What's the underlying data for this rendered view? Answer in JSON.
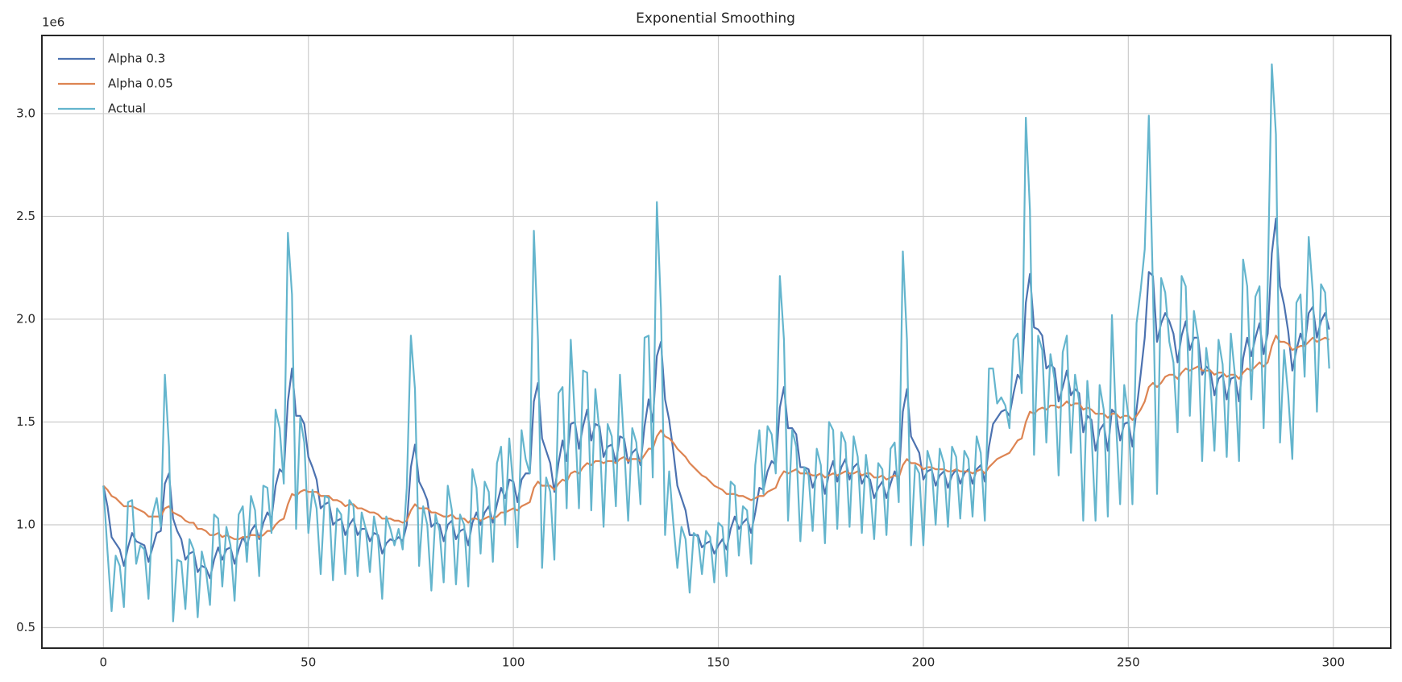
{
  "chart_data": {
    "type": "line",
    "title": "Exponential Smoothing",
    "y_offset_label": "1e6",
    "grid": true,
    "legend": "upper left",
    "xlim": [
      -15,
      314
    ],
    "xticks": [
      0,
      50,
      100,
      150,
      200,
      250,
      300
    ],
    "ylim": [
      0.4,
      3.38
    ],
    "yticks": [
      0.5,
      {
        "value": 1,
        "label": "1.0"
      },
      1.5,
      {
        "value": 2,
        "label": "2.0"
      },
      2.5,
      {
        "value": 3,
        "label": "3.0"
      }
    ],
    "x": [
      0,
      1,
      2,
      3,
      4,
      5,
      6,
      7,
      8,
      9,
      10,
      11,
      12,
      13,
      14,
      15,
      16,
      17,
      18,
      19,
      20,
      21,
      22,
      23,
      24,
      25,
      26,
      27,
      28,
      29,
      30,
      31,
      32,
      33,
      34,
      35,
      36,
      37,
      38,
      39,
      40,
      41,
      42,
      43,
      44,
      45,
      46,
      47,
      48,
      49,
      50,
      51,
      52,
      53,
      54,
      55,
      56,
      57,
      58,
      59,
      60,
      61,
      62,
      63,
      64,
      65,
      66,
      67,
      68,
      69,
      70,
      71,
      72,
      73,
      74,
      75,
      76,
      77,
      78,
      79,
      80,
      81,
      82,
      83,
      84,
      85,
      86,
      87,
      88,
      89,
      90,
      91,
      92,
      93,
      94,
      95,
      96,
      97,
      98,
      99,
      100,
      101,
      102,
      103,
      104,
      105,
      106,
      107,
      108,
      109,
      110,
      111,
      112,
      113,
      114,
      115,
      116,
      117,
      118,
      119,
      120,
      121,
      122,
      123,
      124,
      125,
      126,
      127,
      128,
      129,
      130,
      131,
      132,
      133,
      134,
      135,
      136,
      137,
      138,
      139,
      140,
      141,
      142,
      143,
      144,
      145,
      146,
      147,
      148,
      149,
      150,
      151,
      152,
      153,
      154,
      155,
      156,
      157,
      158,
      159,
      160,
      161,
      162,
      163,
      164,
      165,
      166,
      167,
      168,
      169,
      170,
      171,
      172,
      173,
      174,
      175,
      176,
      177,
      178,
      179,
      180,
      181,
      182,
      183,
      184,
      185,
      186,
      187,
      188,
      189,
      190,
      191,
      192,
      193,
      194,
      195,
      196,
      197,
      198,
      199,
      200,
      201,
      202,
      203,
      204,
      205,
      206,
      207,
      208,
      209,
      210,
      211,
      212,
      213,
      214,
      215,
      216,
      217,
      218,
      219,
      220,
      221,
      222,
      223,
      224,
      225,
      226,
      227,
      228,
      229,
      230,
      231,
      232,
      233,
      234,
      235,
      236,
      237,
      238,
      239,
      240,
      241,
      242,
      243,
      244,
      245,
      246,
      247,
      248,
      249,
      250,
      251,
      252,
      253,
      254,
      255,
      256,
      257,
      258,
      259,
      260,
      261,
      262,
      263,
      264,
      265,
      266,
      267,
      268,
      269,
      270,
      271,
      272,
      273,
      274,
      275,
      276,
      277,
      278,
      279,
      280,
      281,
      282,
      283,
      284,
      285,
      286,
      287,
      288,
      289,
      290,
      291,
      292,
      293,
      294,
      295,
      296,
      297,
      298,
      299
    ],
    "series": [
      {
        "name": "Alpha 0.3",
        "color": "#4c72b0",
        "values": [
          1.19,
          1.09,
          0.94,
          0.91,
          0.88,
          0.8,
          0.89,
          0.96,
          0.92,
          0.91,
          0.9,
          0.82,
          0.89,
          0.96,
          0.97,
          1.2,
          1.25,
          1.03,
          0.97,
          0.93,
          0.83,
          0.86,
          0.87,
          0.77,
          0.8,
          0.79,
          0.74,
          0.83,
          0.89,
          0.83,
          0.88,
          0.89,
          0.81,
          0.88,
          0.94,
          0.9,
          0.97,
          1.0,
          0.93,
          1.01,
          1.06,
          1.03,
          1.19,
          1.27,
          1.25,
          1.6,
          1.76,
          1.53,
          1.53,
          1.49,
          1.33,
          1.28,
          1.22,
          1.08,
          1.1,
          1.11,
          1.0,
          1.02,
          1.03,
          0.95,
          1.0,
          1.03,
          0.95,
          0.98,
          0.98,
          0.92,
          0.96,
          0.95,
          0.86,
          0.91,
          0.93,
          0.92,
          0.94,
          0.92,
          1.0,
          1.28,
          1.39,
          1.21,
          1.17,
          1.12,
          0.99,
          1.01,
          1.0,
          0.92,
          1.0,
          1.02,
          0.93,
          0.97,
          0.98,
          0.9,
          1.01,
          1.06,
          1.0,
          1.06,
          1.09,
          1.01,
          1.1,
          1.18,
          1.13,
          1.22,
          1.21,
          1.11,
          1.22,
          1.25,
          1.25,
          1.6,
          1.69,
          1.42,
          1.36,
          1.3,
          1.16,
          1.3,
          1.41,
          1.31,
          1.49,
          1.5,
          1.37,
          1.48,
          1.56,
          1.41,
          1.49,
          1.48,
          1.33,
          1.38,
          1.39,
          1.3,
          1.43,
          1.42,
          1.3,
          1.35,
          1.37,
          1.29,
          1.48,
          1.61,
          1.5,
          1.82,
          1.89,
          1.61,
          1.51,
          1.36,
          1.19,
          1.13,
          1.07,
          0.95,
          0.95,
          0.95,
          0.89,
          0.91,
          0.92,
          0.86,
          0.9,
          0.93,
          0.88,
          0.98,
          1.04,
          0.98,
          1.01,
          1.03,
          0.96,
          1.06,
          1.18,
          1.17,
          1.26,
          1.31,
          1.29,
          1.57,
          1.67,
          1.47,
          1.47,
          1.44,
          1.28,
          1.28,
          1.27,
          1.18,
          1.24,
          1.25,
          1.15,
          1.25,
          1.31,
          1.21,
          1.28,
          1.32,
          1.22,
          1.28,
          1.3,
          1.2,
          1.24,
          1.22,
          1.13,
          1.18,
          1.21,
          1.13,
          1.2,
          1.26,
          1.22,
          1.55,
          1.66,
          1.43,
          1.39,
          1.35,
          1.22,
          1.26,
          1.27,
          1.19,
          1.24,
          1.26,
          1.18,
          1.24,
          1.27,
          1.2,
          1.25,
          1.27,
          1.2,
          1.27,
          1.29,
          1.21,
          1.38,
          1.49,
          1.52,
          1.55,
          1.56,
          1.53,
          1.64,
          1.73,
          1.7,
          2.08,
          2.22,
          1.96,
          1.95,
          1.92,
          1.76,
          1.78,
          1.76,
          1.6,
          1.67,
          1.75,
          1.63,
          1.66,
          1.64,
          1.45,
          1.53,
          1.51,
          1.36,
          1.46,
          1.49,
          1.36,
          1.56,
          1.54,
          1.41,
          1.49,
          1.5,
          1.38,
          1.56,
          1.73,
          1.91,
          2.23,
          2.21,
          1.89,
          1.98,
          2.03,
          1.99,
          1.93,
          1.79,
          1.92,
          1.99,
          1.85,
          1.91,
          1.91,
          1.73,
          1.77,
          1.75,
          1.63,
          1.71,
          1.73,
          1.61,
          1.71,
          1.72,
          1.6,
          1.81,
          1.91,
          1.82,
          1.91,
          1.98,
          1.83,
          1.93,
          2.32,
          2.49,
          2.16,
          2.07,
          1.94,
          1.75,
          1.85,
          1.93,
          1.87,
          2.03,
          2.06,
          1.91,
          1.99,
          2.03,
          1.95
        ]
      },
      {
        "name": "Alpha 0.05",
        "color": "#dd8452",
        "values": [
          1.19,
          1.17,
          1.14,
          1.13,
          1.11,
          1.09,
          1.09,
          1.09,
          1.08,
          1.07,
          1.06,
          1.04,
          1.04,
          1.04,
          1.04,
          1.08,
          1.09,
          1.06,
          1.05,
          1.04,
          1.02,
          1.01,
          1.01,
          0.98,
          0.98,
          0.97,
          0.95,
          0.95,
          0.96,
          0.94,
          0.95,
          0.94,
          0.93,
          0.93,
          0.94,
          0.94,
          0.95,
          0.95,
          0.94,
          0.95,
          0.97,
          0.97,
          1.0,
          1.02,
          1.03,
          1.1,
          1.15,
          1.14,
          1.16,
          1.17,
          1.16,
          1.16,
          1.16,
          1.14,
          1.14,
          1.14,
          1.12,
          1.12,
          1.11,
          1.09,
          1.1,
          1.1,
          1.08,
          1.08,
          1.07,
          1.06,
          1.06,
          1.05,
          1.03,
          1.03,
          1.03,
          1.02,
          1.02,
          1.01,
          1.02,
          1.07,
          1.1,
          1.08,
          1.08,
          1.08,
          1.06,
          1.06,
          1.05,
          1.04,
          1.04,
          1.05,
          1.03,
          1.03,
          1.03,
          1.01,
          1.03,
          1.03,
          1.02,
          1.03,
          1.04,
          1.03,
          1.04,
          1.06,
          1.06,
          1.07,
          1.08,
          1.07,
          1.09,
          1.1,
          1.11,
          1.18,
          1.21,
          1.19,
          1.19,
          1.19,
          1.17,
          1.2,
          1.22,
          1.21,
          1.25,
          1.26,
          1.25,
          1.28,
          1.3,
          1.29,
          1.31,
          1.31,
          1.3,
          1.31,
          1.31,
          1.3,
          1.32,
          1.33,
          1.31,
          1.32,
          1.32,
          1.31,
          1.34,
          1.37,
          1.37,
          1.43,
          1.46,
          1.43,
          1.42,
          1.4,
          1.37,
          1.35,
          1.33,
          1.3,
          1.28,
          1.26,
          1.24,
          1.23,
          1.21,
          1.19,
          1.18,
          1.17,
          1.15,
          1.15,
          1.15,
          1.14,
          1.14,
          1.13,
          1.12,
          1.13,
          1.14,
          1.14,
          1.16,
          1.17,
          1.18,
          1.23,
          1.26,
          1.25,
          1.26,
          1.27,
          1.25,
          1.25,
          1.25,
          1.24,
          1.24,
          1.25,
          1.23,
          1.24,
          1.25,
          1.24,
          1.25,
          1.26,
          1.25,
          1.25,
          1.26,
          1.24,
          1.25,
          1.25,
          1.23,
          1.23,
          1.24,
          1.22,
          1.23,
          1.24,
          1.23,
          1.29,
          1.32,
          1.3,
          1.3,
          1.29,
          1.27,
          1.28,
          1.28,
          1.27,
          1.27,
          1.27,
          1.26,
          1.26,
          1.27,
          1.26,
          1.26,
          1.26,
          1.25,
          1.26,
          1.27,
          1.25,
          1.28,
          1.3,
          1.32,
          1.33,
          1.34,
          1.35,
          1.38,
          1.41,
          1.42,
          1.5,
          1.55,
          1.54,
          1.56,
          1.57,
          1.56,
          1.58,
          1.58,
          1.57,
          1.58,
          1.6,
          1.58,
          1.59,
          1.59,
          1.56,
          1.57,
          1.56,
          1.54,
          1.54,
          1.54,
          1.52,
          1.54,
          1.54,
          1.52,
          1.53,
          1.53,
          1.51,
          1.53,
          1.56,
          1.6,
          1.67,
          1.69,
          1.67,
          1.69,
          1.72,
          1.73,
          1.73,
          1.71,
          1.74,
          1.76,
          1.75,
          1.76,
          1.77,
          1.75,
          1.75,
          1.75,
          1.73,
          1.74,
          1.74,
          1.72,
          1.73,
          1.73,
          1.71,
          1.74,
          1.76,
          1.75,
          1.77,
          1.79,
          1.77,
          1.79,
          1.87,
          1.92,
          1.89,
          1.89,
          1.88,
          1.85,
          1.86,
          1.87,
          1.87,
          1.89,
          1.91,
          1.89,
          1.9,
          1.91,
          1.9
        ]
      },
      {
        "name": "Actual",
        "color": "#64b5cd",
        "values": [
          1.19,
          0.87,
          0.58,
          0.85,
          0.8,
          0.6,
          1.11,
          1.12,
          0.81,
          0.9,
          0.88,
          0.64,
          1.05,
          1.13,
          0.99,
          1.73,
          1.38,
          0.53,
          0.83,
          0.82,
          0.59,
          0.93,
          0.88,
          0.55,
          0.87,
          0.78,
          0.61,
          1.05,
          1.03,
          0.7,
          0.99,
          0.9,
          0.63,
          1.05,
          1.09,
          0.82,
          1.14,
          1.07,
          0.75,
          1.19,
          1.18,
          0.96,
          1.56,
          1.47,
          1.2,
          2.42,
          2.12,
          0.98,
          1.52,
          1.4,
          0.96,
          1.17,
          1.08,
          0.76,
          1.14,
          1.13,
          0.73,
          1.08,
          1.05,
          0.76,
          1.12,
          1.09,
          0.75,
          1.06,
          0.98,
          0.77,
          1.04,
          0.93,
          0.64,
          1.04,
          0.98,
          0.9,
          0.98,
          0.88,
          1.18,
          1.92,
          1.66,
          0.8,
          1.09,
          1.0,
          0.68,
          1.05,
          0.97,
          0.72,
          1.19,
          1.07,
          0.71,
          1.05,
          1.0,
          0.7,
          1.27,
          1.18,
          0.86,
          1.21,
          1.16,
          0.82,
          1.3,
          1.38,
          1.0,
          1.42,
          1.18,
          0.89,
          1.46,
          1.32,
          1.25,
          2.43,
          1.9,
          0.79,
          1.23,
          1.16,
          0.83,
          1.64,
          1.67,
          1.08,
          1.9,
          1.52,
          1.08,
          1.75,
          1.74,
          1.07,
          1.66,
          1.45,
          0.99,
          1.49,
          1.43,
          1.09,
          1.73,
          1.39,
          1.02,
          1.47,
          1.4,
          1.1,
          1.91,
          1.92,
          1.23,
          2.57,
          2.05,
          0.95,
          1.26,
          1.01,
          0.79,
          0.99,
          0.93,
          0.67,
          0.96,
          0.94,
          0.76,
          0.97,
          0.94,
          0.72,
          1.01,
          0.99,
          0.75,
          1.21,
          1.19,
          0.85,
          1.09,
          1.07,
          0.81,
          1.29,
          1.46,
          1.15,
          1.48,
          1.44,
          1.25,
          2.21,
          1.9,
          1.02,
          1.46,
          1.38,
          0.92,
          1.28,
          1.24,
          0.97,
          1.37,
          1.29,
          0.91,
          1.5,
          1.46,
          0.98,
          1.45,
          1.4,
          0.99,
          1.43,
          1.33,
          0.96,
          1.34,
          1.18,
          0.93,
          1.3,
          1.27,
          0.95,
          1.37,
          1.4,
          1.11,
          2.33,
          1.9,
          0.9,
          1.29,
          1.25,
          0.9,
          1.36,
          1.29,
          1.0,
          1.37,
          1.3,
          0.99,
          1.38,
          1.33,
          1.03,
          1.36,
          1.32,
          1.04,
          1.43,
          1.35,
          1.02,
          1.76,
          1.76,
          1.59,
          1.62,
          1.58,
          1.47,
          1.9,
          1.93,
          1.64,
          2.98,
          2.53,
          1.34,
          1.92,
          1.85,
          1.4,
          1.83,
          1.71,
          1.24,
          1.84,
          1.92,
          1.35,
          1.73,
          1.6,
          1.02,
          1.7,
          1.45,
          1.02,
          1.68,
          1.56,
          1.04,
          2.02,
          1.5,
          1.1,
          1.68,
          1.53,
          1.1,
          1.98,
          2.14,
          2.34,
          2.99,
          2.15,
          1.15,
          2.2,
          2.13,
          1.89,
          1.79,
          1.45,
          2.21,
          2.16,
          1.53,
          2.04,
          1.91,
          1.31,
          1.86,
          1.7,
          1.36,
          1.9,
          1.78,
          1.33,
          1.93,
          1.73,
          1.31,
          2.29,
          2.16,
          1.61,
          2.11,
          2.16,
          1.47,
          2.17,
          3.24,
          2.9,
          1.4,
          1.85,
          1.63,
          1.32,
          2.08,
          2.12,
          1.72,
          2.4,
          2.13,
          1.55,
          2.17,
          2.13,
          1.76
        ]
      }
    ]
  }
}
